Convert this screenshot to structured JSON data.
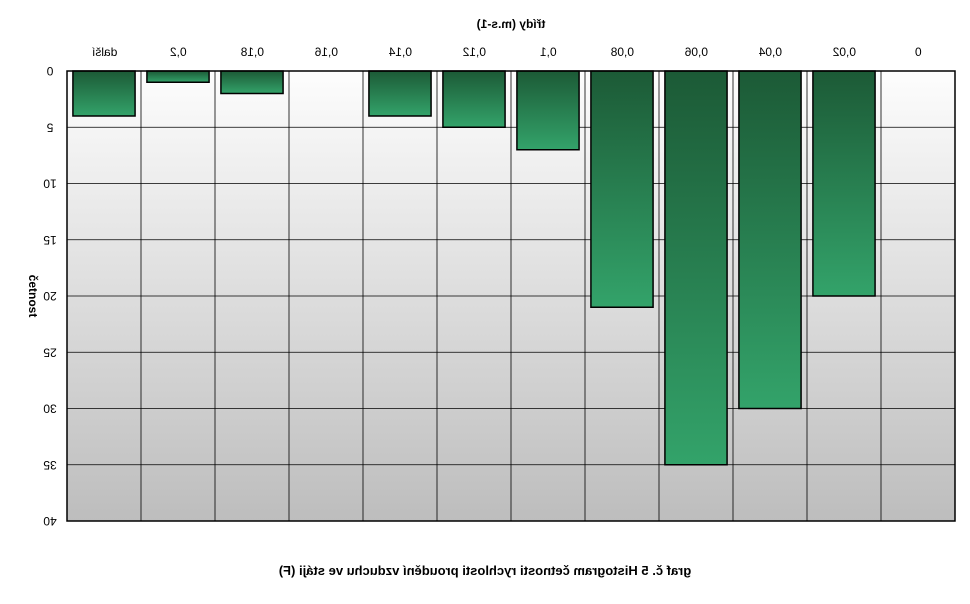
{
  "chart_data": {
    "type": "bar",
    "caption": "graf č. 5 Histogram četnosti rychlosti proudění vzduchu ve stáji (F)",
    "xlabel": "třídy (m.s-1)",
    "ylabel": "četnost",
    "categories": [
      "0",
      "0,02",
      "0,04",
      "0,06",
      "0,08",
      "0,1",
      "0,12",
      "0,14",
      "0,16",
      "0,18",
      "0,2",
      "další"
    ],
    "values": [
      0,
      20,
      30,
      35,
      21,
      7,
      5,
      4,
      0,
      2,
      1,
      4
    ],
    "ylim": [
      0,
      40
    ],
    "yticks": [
      "0",
      "5",
      "10",
      "15",
      "20",
      "25",
      "30",
      "35",
      "40"
    ],
    "grid": true,
    "legend": "none",
    "colors": {
      "bar_dark": "#1c5a36",
      "bar_light": "#33a36a",
      "plot_bg_top": "#fdfdfd",
      "plot_bg_bottom": "#bdbdbd",
      "grid": "#000000"
    }
  }
}
